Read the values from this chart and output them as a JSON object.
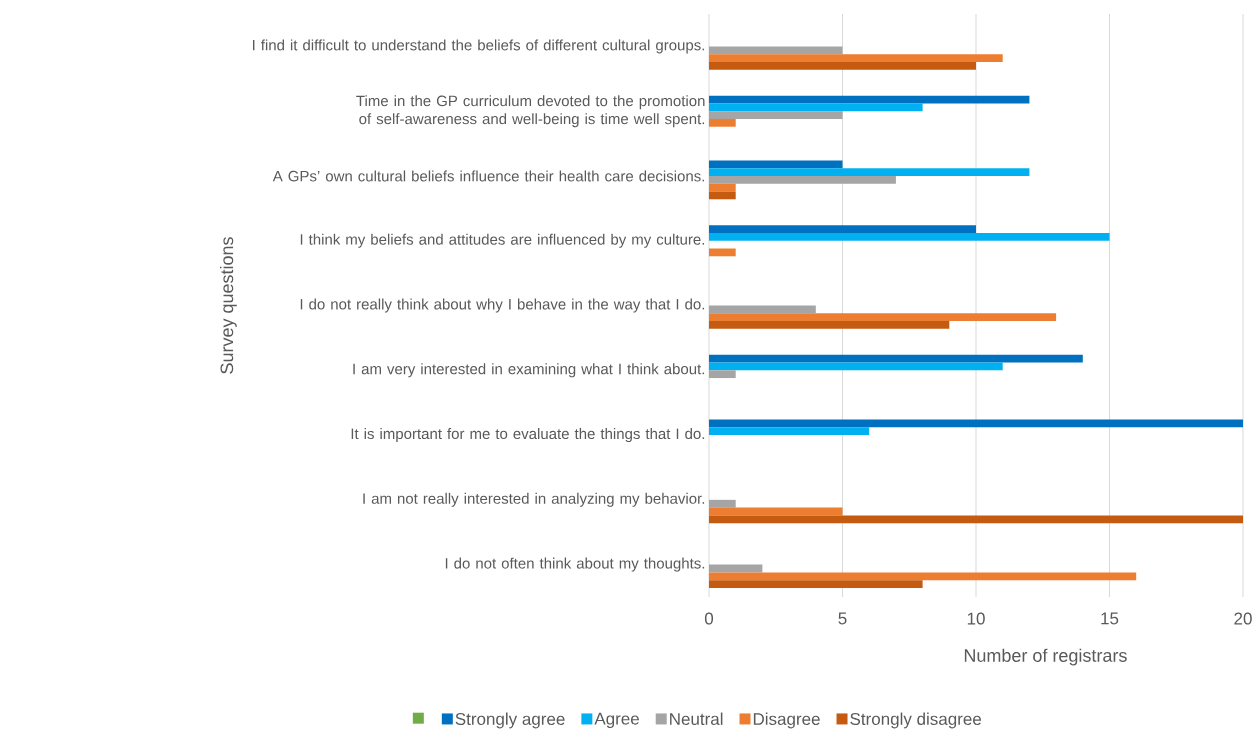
{
  "chart_data": {
    "type": "bar",
    "orientation": "horizontal",
    "categories": [
      "I find it difficult to understand the beliefs of different cultural groups.",
      "Time in the GP curriculum devoted to the promotion of self-awareness and well-being is time well spent.",
      "A GPs’ own cultural beliefs influence their health care decisions.",
      "I think my beliefs and attitudes are influenced by my culture.",
      "I do not really think about why I behave in the way that I do.",
      "I am very interested in examining what I think about.",
      "It is important for me to evaluate the things that I do.",
      "I am not really interested in analyzing my behavior.",
      "I do not often think about my thoughts."
    ],
    "series": [
      {
        "color": "#70ad47",
        "values": [
          null,
          null,
          null,
          null,
          null,
          null,
          null,
          null,
          null
        ]
      },
      {
        "name": "Strongly agree",
        "color": "#0070c0",
        "values": [
          0,
          12,
          5,
          10,
          0,
          14,
          20,
          0,
          0
        ]
      },
      {
        "name": "Agree",
        "color": "#00b0f0",
        "values": [
          0,
          8,
          12,
          15,
          0,
          11,
          6,
          0,
          0
        ]
      },
      {
        "name": "Neutral",
        "color": "#a5a5a5",
        "values": [
          5,
          5,
          7,
          0,
          4,
          1,
          0,
          1,
          2
        ]
      },
      {
        "name": "Disagree",
        "color": "#ed7d31",
        "values": [
          11,
          1,
          1,
          1,
          13,
          0,
          0,
          5,
          16
        ]
      },
      {
        "name": "Strongly disagree",
        "color": "#c55a11",
        "values": [
          10,
          0,
          1,
          0,
          9,
          0,
          0,
          20,
          8
        ]
      }
    ],
    "xlabel": "Number of registrars",
    "ylabel": "Survey questions",
    "xlim": [
      0,
      20
    ],
    "xticks": [
      0,
      5,
      10,
      15,
      20
    ],
    "grid": "x",
    "legend": "bottom"
  }
}
